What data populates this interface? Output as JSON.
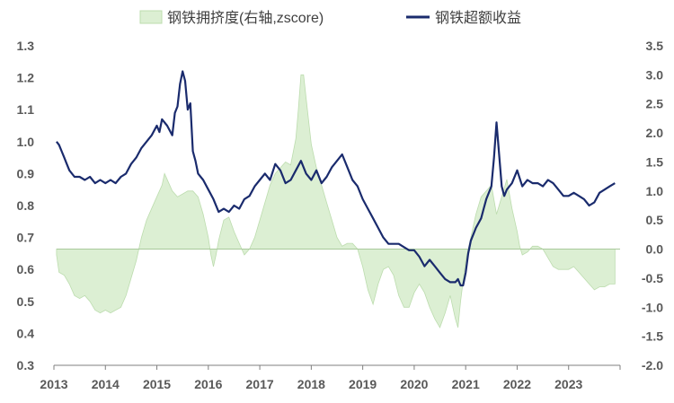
{
  "chart_data": {
    "type": "line",
    "title": "",
    "xlabel": "",
    "ylabel": "",
    "grid": false,
    "legend_position": "top",
    "x_ticks": [
      "2013",
      "2014",
      "2015",
      "2016",
      "2017",
      "2018",
      "2019",
      "2020",
      "2021",
      "2022",
      "2023"
    ],
    "left_axis": {
      "ticks": [
        "0.3",
        "0.4",
        "0.5",
        "0.6",
        "0.7",
        "0.8",
        "0.9",
        "1.0",
        "1.1",
        "1.2",
        "1.3"
      ],
      "ylim": [
        0.3,
        1.3
      ]
    },
    "right_axis": {
      "ticks": [
        "-2.0",
        "-1.5",
        "-1.0",
        "-0.5",
        "0.0",
        "0.5",
        "1.0",
        "1.5",
        "2.0",
        "2.5",
        "3.0",
        "3.5"
      ],
      "ylim": [
        -2.0,
        3.5
      ]
    },
    "series": [
      {
        "name": "钢铁拥挤度(右轴,zscore)",
        "kind": "area",
        "axis": "right",
        "color": "#dcefd3",
        "edge_color": "#bcdcae",
        "points": [
          [
            2013.05,
            -0.1
          ],
          [
            2013.1,
            -0.4
          ],
          [
            2013.2,
            -0.45
          ],
          [
            2013.3,
            -0.6
          ],
          [
            2013.4,
            -0.8
          ],
          [
            2013.5,
            -0.85
          ],
          [
            2013.6,
            -0.8
          ],
          [
            2013.7,
            -0.9
          ],
          [
            2013.8,
            -1.05
          ],
          [
            2013.9,
            -1.1
          ],
          [
            2014.0,
            -1.05
          ],
          [
            2014.1,
            -1.1
          ],
          [
            2014.2,
            -1.05
          ],
          [
            2014.3,
            -1.0
          ],
          [
            2014.4,
            -0.8
          ],
          [
            2014.5,
            -0.5
          ],
          [
            2014.6,
            -0.2
          ],
          [
            2014.7,
            0.2
          ],
          [
            2014.8,
            0.5
          ],
          [
            2014.9,
            0.7
          ],
          [
            2015.0,
            0.9
          ],
          [
            2015.1,
            1.1
          ],
          [
            2015.15,
            1.3
          ],
          [
            2015.2,
            1.2
          ],
          [
            2015.3,
            1.0
          ],
          [
            2015.4,
            0.9
          ],
          [
            2015.5,
            0.95
          ],
          [
            2015.6,
            1.0
          ],
          [
            2015.7,
            1.0
          ],
          [
            2015.8,
            0.9
          ],
          [
            2015.9,
            0.6
          ],
          [
            2016.0,
            0.2
          ],
          [
            2016.05,
            -0.1
          ],
          [
            2016.1,
            -0.3
          ],
          [
            2016.15,
            -0.1
          ],
          [
            2016.2,
            0.15
          ],
          [
            2016.3,
            0.5
          ],
          [
            2016.4,
            0.55
          ],
          [
            2016.5,
            0.3
          ],
          [
            2016.6,
            0.1
          ],
          [
            2016.7,
            -0.1
          ],
          [
            2016.8,
            0.0
          ],
          [
            2016.9,
            0.2
          ],
          [
            2017.0,
            0.5
          ],
          [
            2017.1,
            0.8
          ],
          [
            2017.2,
            1.1
          ],
          [
            2017.3,
            1.3
          ],
          [
            2017.4,
            1.4
          ],
          [
            2017.5,
            1.5
          ],
          [
            2017.6,
            1.45
          ],
          [
            2017.7,
            1.9
          ],
          [
            2017.75,
            2.4
          ],
          [
            2017.8,
            3.0
          ],
          [
            2017.85,
            3.0
          ],
          [
            2017.9,
            2.6
          ],
          [
            2018.0,
            1.8
          ],
          [
            2018.1,
            1.4
          ],
          [
            2018.2,
            1.1
          ],
          [
            2018.3,
            0.8
          ],
          [
            2018.4,
            0.5
          ],
          [
            2018.5,
            0.2
          ],
          [
            2018.6,
            0.05
          ],
          [
            2018.7,
            0.1
          ],
          [
            2018.8,
            0.1
          ],
          [
            2018.9,
            0.0
          ],
          [
            2019.0,
            -0.3
          ],
          [
            2019.1,
            -0.7
          ],
          [
            2019.2,
            -0.95
          ],
          [
            2019.3,
            -0.6
          ],
          [
            2019.4,
            -0.35
          ],
          [
            2019.5,
            -0.3
          ],
          [
            2019.6,
            -0.45
          ],
          [
            2019.7,
            -0.8
          ],
          [
            2019.8,
            -1.0
          ],
          [
            2019.9,
            -1.0
          ],
          [
            2020.0,
            -0.75
          ],
          [
            2020.1,
            -0.6
          ],
          [
            2020.2,
            -0.75
          ],
          [
            2020.3,
            -1.0
          ],
          [
            2020.4,
            -1.2
          ],
          [
            2020.5,
            -1.35
          ],
          [
            2020.6,
            -1.1
          ],
          [
            2020.7,
            -0.8
          ],
          [
            2020.8,
            -1.2
          ],
          [
            2020.85,
            -1.35
          ],
          [
            2020.9,
            -0.9
          ],
          [
            2021.0,
            -0.2
          ],
          [
            2021.1,
            0.2
          ],
          [
            2021.2,
            0.6
          ],
          [
            2021.3,
            0.9
          ],
          [
            2021.4,
            1.0
          ],
          [
            2021.5,
            1.1
          ],
          [
            2021.6,
            0.6
          ],
          [
            2021.7,
            0.9
          ],
          [
            2021.8,
            1.2
          ],
          [
            2021.9,
            0.7
          ],
          [
            2022.0,
            0.3
          ],
          [
            2022.05,
            0.05
          ],
          [
            2022.1,
            -0.1
          ],
          [
            2022.2,
            -0.05
          ],
          [
            2022.3,
            0.05
          ],
          [
            2022.4,
            0.05
          ],
          [
            2022.5,
            0.0
          ],
          [
            2022.6,
            -0.15
          ],
          [
            2022.7,
            -0.3
          ],
          [
            2022.8,
            -0.35
          ],
          [
            2022.9,
            -0.35
          ],
          [
            2023.0,
            -0.35
          ],
          [
            2023.1,
            -0.3
          ],
          [
            2023.2,
            -0.4
          ],
          [
            2023.3,
            -0.5
          ],
          [
            2023.4,
            -0.6
          ],
          [
            2023.5,
            -0.7
          ],
          [
            2023.6,
            -0.65
          ],
          [
            2023.7,
            -0.65
          ],
          [
            2023.8,
            -0.6
          ],
          [
            2023.9,
            -0.6
          ]
        ]
      },
      {
        "name": "钢铁超额收益",
        "kind": "line",
        "axis": "left",
        "color": "#1a2b6d",
        "points": [
          [
            2013.05,
            1.0
          ],
          [
            2013.1,
            0.99
          ],
          [
            2013.15,
            0.97
          ],
          [
            2013.2,
            0.95
          ],
          [
            2013.25,
            0.93
          ],
          [
            2013.3,
            0.91
          ],
          [
            2013.4,
            0.89
          ],
          [
            2013.5,
            0.89
          ],
          [
            2013.6,
            0.88
          ],
          [
            2013.7,
            0.89
          ],
          [
            2013.8,
            0.87
          ],
          [
            2013.9,
            0.88
          ],
          [
            2014.0,
            0.87
          ],
          [
            2014.1,
            0.88
          ],
          [
            2014.2,
            0.87
          ],
          [
            2014.3,
            0.89
          ],
          [
            2014.4,
            0.9
          ],
          [
            2014.5,
            0.93
          ],
          [
            2014.6,
            0.95
          ],
          [
            2014.7,
            0.98
          ],
          [
            2014.8,
            1.0
          ],
          [
            2014.9,
            1.02
          ],
          [
            2015.0,
            1.05
          ],
          [
            2015.05,
            1.03
          ],
          [
            2015.1,
            1.07
          ],
          [
            2015.2,
            1.05
          ],
          [
            2015.3,
            1.02
          ],
          [
            2015.35,
            1.09
          ],
          [
            2015.4,
            1.11
          ],
          [
            2015.45,
            1.18
          ],
          [
            2015.5,
            1.22
          ],
          [
            2015.55,
            1.19
          ],
          [
            2015.6,
            1.1
          ],
          [
            2015.65,
            1.12
          ],
          [
            2015.7,
            0.97
          ],
          [
            2015.75,
            0.94
          ],
          [
            2015.8,
            0.9
          ],
          [
            2015.9,
            0.88
          ],
          [
            2016.0,
            0.85
          ],
          [
            2016.1,
            0.82
          ],
          [
            2016.2,
            0.78
          ],
          [
            2016.3,
            0.79
          ],
          [
            2016.4,
            0.78
          ],
          [
            2016.5,
            0.8
          ],
          [
            2016.6,
            0.79
          ],
          [
            2016.7,
            0.82
          ],
          [
            2016.8,
            0.83
          ],
          [
            2016.9,
            0.86
          ],
          [
            2017.0,
            0.88
          ],
          [
            2017.1,
            0.9
          ],
          [
            2017.2,
            0.88
          ],
          [
            2017.3,
            0.93
          ],
          [
            2017.4,
            0.91
          ],
          [
            2017.5,
            0.87
          ],
          [
            2017.6,
            0.88
          ],
          [
            2017.7,
            0.91
          ],
          [
            2017.8,
            0.94
          ],
          [
            2017.9,
            0.9
          ],
          [
            2018.0,
            0.88
          ],
          [
            2018.1,
            0.91
          ],
          [
            2018.2,
            0.87
          ],
          [
            2018.3,
            0.89
          ],
          [
            2018.4,
            0.92
          ],
          [
            2018.5,
            0.94
          ],
          [
            2018.6,
            0.96
          ],
          [
            2018.7,
            0.92
          ],
          [
            2018.8,
            0.88
          ],
          [
            2018.9,
            0.86
          ],
          [
            2019.0,
            0.82
          ],
          [
            2019.1,
            0.79
          ],
          [
            2019.2,
            0.76
          ],
          [
            2019.3,
            0.73
          ],
          [
            2019.4,
            0.7
          ],
          [
            2019.5,
            0.68
          ],
          [
            2019.6,
            0.68
          ],
          [
            2019.7,
            0.68
          ],
          [
            2019.8,
            0.67
          ],
          [
            2019.9,
            0.66
          ],
          [
            2020.0,
            0.66
          ],
          [
            2020.1,
            0.64
          ],
          [
            2020.2,
            0.61
          ],
          [
            2020.3,
            0.63
          ],
          [
            2020.4,
            0.61
          ],
          [
            2020.5,
            0.59
          ],
          [
            2020.6,
            0.57
          ],
          [
            2020.7,
            0.56
          ],
          [
            2020.8,
            0.56
          ],
          [
            2020.85,
            0.57
          ],
          [
            2020.9,
            0.55
          ],
          [
            2020.95,
            0.55
          ],
          [
            2021.0,
            0.59
          ],
          [
            2021.05,
            0.65
          ],
          [
            2021.1,
            0.69
          ],
          [
            2021.2,
            0.73
          ],
          [
            2021.3,
            0.76
          ],
          [
            2021.35,
            0.79
          ],
          [
            2021.4,
            0.82
          ],
          [
            2021.5,
            0.86
          ],
          [
            2021.55,
            0.95
          ],
          [
            2021.6,
            1.06
          ],
          [
            2021.65,
            0.96
          ],
          [
            2021.7,
            0.86
          ],
          [
            2021.75,
            0.83
          ],
          [
            2021.8,
            0.85
          ],
          [
            2021.9,
            0.87
          ],
          [
            2022.0,
            0.91
          ],
          [
            2022.1,
            0.86
          ],
          [
            2022.2,
            0.88
          ],
          [
            2022.3,
            0.87
          ],
          [
            2022.4,
            0.87
          ],
          [
            2022.5,
            0.86
          ],
          [
            2022.6,
            0.88
          ],
          [
            2022.7,
            0.87
          ],
          [
            2022.8,
            0.85
          ],
          [
            2022.9,
            0.83
          ],
          [
            2023.0,
            0.83
          ],
          [
            2023.1,
            0.84
          ],
          [
            2023.2,
            0.83
          ],
          [
            2023.3,
            0.82
          ],
          [
            2023.4,
            0.8
          ],
          [
            2023.5,
            0.81
          ],
          [
            2023.6,
            0.84
          ],
          [
            2023.7,
            0.85
          ],
          [
            2023.8,
            0.86
          ],
          [
            2023.9,
            0.87
          ]
        ]
      }
    ]
  }
}
